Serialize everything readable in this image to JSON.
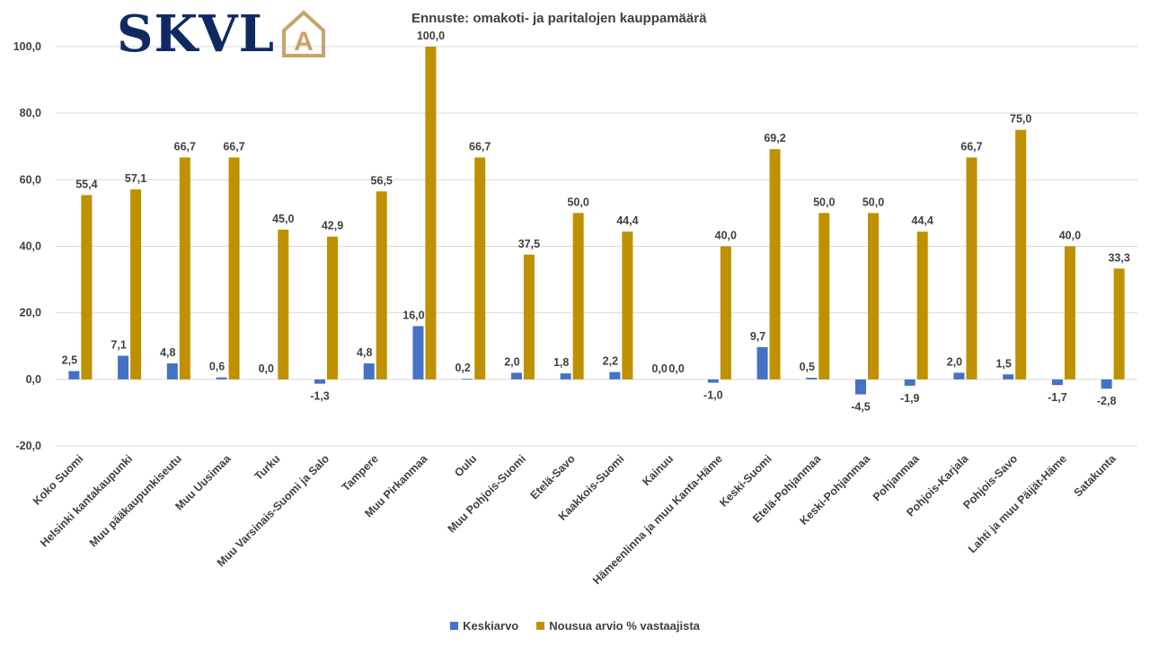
{
  "logo": {
    "text": "SKVL",
    "letter": "A",
    "text_color": "#0f2a63",
    "accent_color": "#c9a26a"
  },
  "chart_data": {
    "type": "bar",
    "title": "Ennuste: omakoti- ja paritalojen kauppamäärä",
    "xlabel": "",
    "ylabel": "",
    "ylim": [
      -20,
      100
    ],
    "yticks": [
      "-20,0",
      "0,0",
      "20,0",
      "40,0",
      "60,0",
      "80,0",
      "100,0"
    ],
    "grid": true,
    "legend_position": "bottom",
    "categories": [
      "Koko Suomi",
      "Helsinki kantakaupunki",
      "Muu pääkaupunkiseutu",
      "Muu Uusimaa",
      "Turku",
      "Muu Varsinais-Suomi ja Salo",
      "Tampere",
      "Muu Pirkanmaa",
      "Oulu",
      "Muu Pohjois-Suomi",
      "Etelä-Savo",
      "Kaakkois-Suomi",
      "Kainuu",
      "Hämeenlinna ja muu Kanta-Häme",
      "Keski-Suomi",
      "Etelä-Pohjanmaa",
      "Keski-Pohjanmaa",
      "Pohjanmaa",
      "Pohjois-Karjala",
      "Pohjois-Savo",
      "Lahti ja muu Päijät-Häme",
      "Satakunta"
    ],
    "series": [
      {
        "name": "Keskiarvo",
        "color": "#4472c4",
        "values": [
          2.5,
          7.1,
          4.8,
          0.6,
          0.0,
          -1.3,
          4.8,
          16.0,
          0.2,
          2.0,
          1.8,
          2.2,
          0.0,
          -1.0,
          9.7,
          0.5,
          -4.5,
          -1.9,
          2.0,
          1.5,
          -1.7,
          -2.8
        ],
        "labels": [
          "2,5",
          "7,1",
          "4,8",
          "0,6",
          "0,0",
          "-1,3",
          "4,8",
          "16,0",
          "0,2",
          "2,0",
          "1,8",
          "2,2",
          "0,0",
          "-1,0",
          "9,7",
          "0,5",
          "-4,5",
          "-1,9",
          "2,0",
          "1,5",
          "-1,7",
          "-2,8"
        ]
      },
      {
        "name": "Nousua arvio % vastaajista",
        "color": "#bf9000",
        "values": [
          55.4,
          57.1,
          66.7,
          66.7,
          45.0,
          42.9,
          56.5,
          100.0,
          66.7,
          37.5,
          50.0,
          44.4,
          0.0,
          40.0,
          69.2,
          50.0,
          50.0,
          44.4,
          66.7,
          75.0,
          40.0,
          33.3
        ],
        "labels": [
          "55,4",
          "57,1",
          "66,7",
          "66,7",
          "45,0",
          "42,9",
          "56,5",
          "100,0",
          "66,7",
          "37,5",
          "50,0",
          "44,4",
          "0,0",
          "40,0",
          "69,2",
          "50,0",
          "50,0",
          "44,4",
          "66,7",
          "75,0",
          "40,0",
          "33,3"
        ]
      }
    ]
  }
}
